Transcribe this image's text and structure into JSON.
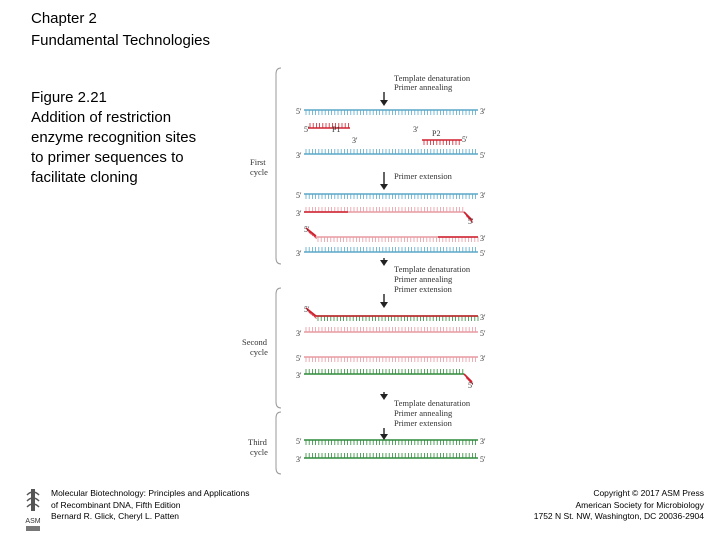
{
  "header": {
    "chapter": "Chapter 2",
    "subtitle": "Fundamental Technologies"
  },
  "caption": {
    "figure_number": "Figure 2.21",
    "lines": [
      "Addition of restriction",
      "enzyme recognition sites",
      "to primer sequences to",
      "facilitate cloning"
    ]
  },
  "diagram": {
    "cycles": [
      {
        "line1": "First",
        "line2": "cycle"
      },
      {
        "line1": "Second",
        "line2": "cycle"
      },
      {
        "line1": "Third",
        "line2": "cycle"
      }
    ],
    "steps": {
      "cycle1_top": [
        "Template denaturation",
        "Primer annealing"
      ],
      "cycle1_ext": [
        "Primer extension"
      ],
      "cycle2_top": [
        "Template denaturation",
        "Primer annealing",
        "Primer extension"
      ],
      "cycle3_top": [
        "Template denaturation",
        "Primer annealing",
        "Primer extension"
      ]
    },
    "primers": {
      "p1": "P1",
      "p2": "P2"
    },
    "ends": {
      "five": "5'",
      "three": "3'"
    },
    "colors": {
      "template": "#5aa8c8",
      "primer": "#d0212f",
      "new_strand": "#e89aa2",
      "product": "#2f8a3a",
      "arrow": "#222222"
    }
  },
  "footer": {
    "left": [
      "Molecular Biotechnology: Principles and Applications",
      "of Recombinant DNA, Fifth Edition",
      "Bernard R. Glick, Cheryl L. Patten"
    ],
    "right": [
      "Copyright © 2017 ASM Press",
      "American Society for Microbiology",
      "1752 N St. NW, Washington, DC 20036-2904"
    ],
    "logo_text": "ASM"
  }
}
